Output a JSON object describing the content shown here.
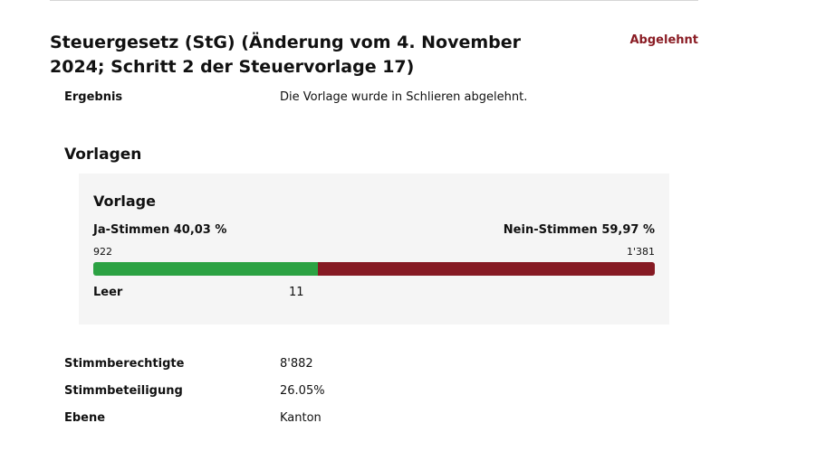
{
  "header": {
    "title": "Steuergesetz (StG) (Änderung vom 4. November 2024; Schritt 2 der Steuervorlage 17)",
    "status": "Abgelehnt"
  },
  "result": {
    "label": "Ergebnis",
    "text": "Die Vorlage wurde in Schlieren abgelehnt."
  },
  "section": {
    "heading": "Vorlagen"
  },
  "vorlage": {
    "title": "Vorlage",
    "yes_label": "Ja-Stimmen 40,03 %",
    "no_label": "Nein-Stimmen 59,97 %",
    "yes_count": "922",
    "no_count": "1'381",
    "yes_share": 0.4003,
    "empty_label": "Leer",
    "empty_value": "11"
  },
  "details": [
    {
      "label": "Stimmberechtigte",
      "value": "8'882"
    },
    {
      "label": "Stimmbeteiligung",
      "value": "26.05%"
    },
    {
      "label": "Ebene",
      "value": "Kanton"
    }
  ],
  "colors": {
    "accent": "#8a1c24",
    "yes": "#2ca243",
    "no": "#861a23",
    "card_bg": "#f5f5f5"
  }
}
